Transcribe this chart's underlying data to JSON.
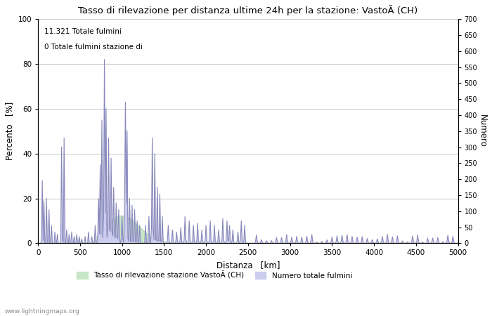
{
  "title": "Tasso di rilevazione per distanza ultime 24h per la stazione: VastoÃ (CH)",
  "xlabel": "Distanza   [km]",
  "ylabel_left": "Percento   [%]",
  "ylabel_right": "Numero",
  "annotation_line1": "11.321 Totale fulmini",
  "annotation_line2": "0 Totale fulmini stazione di",
  "xlim": [
    0,
    5000
  ],
  "ylim_left": [
    0,
    100
  ],
  "ylim_right": [
    0,
    700
  ],
  "xticks": [
    0,
    500,
    1000,
    1500,
    2000,
    2500,
    3000,
    3500,
    4000,
    4500,
    5000
  ],
  "yticks_left": [
    0,
    20,
    40,
    60,
    80,
    100
  ],
  "yticks_right": [
    0,
    50,
    100,
    150,
    200,
    250,
    300,
    350,
    400,
    450,
    500,
    550,
    600,
    650,
    700
  ],
  "legend_label_green": "Tasso di rilevazione stazione VastoÃ (CH)",
  "legend_label_blue": "Numero totale fulmini",
  "watermark": "www.lightningmaps.org",
  "fill_green_color": "#c8e6c8",
  "fill_blue_color": "#ccccee",
  "line_blue_color": "#8888bb",
  "background_color": "#ffffff",
  "grid_color": "#c8c8c8"
}
